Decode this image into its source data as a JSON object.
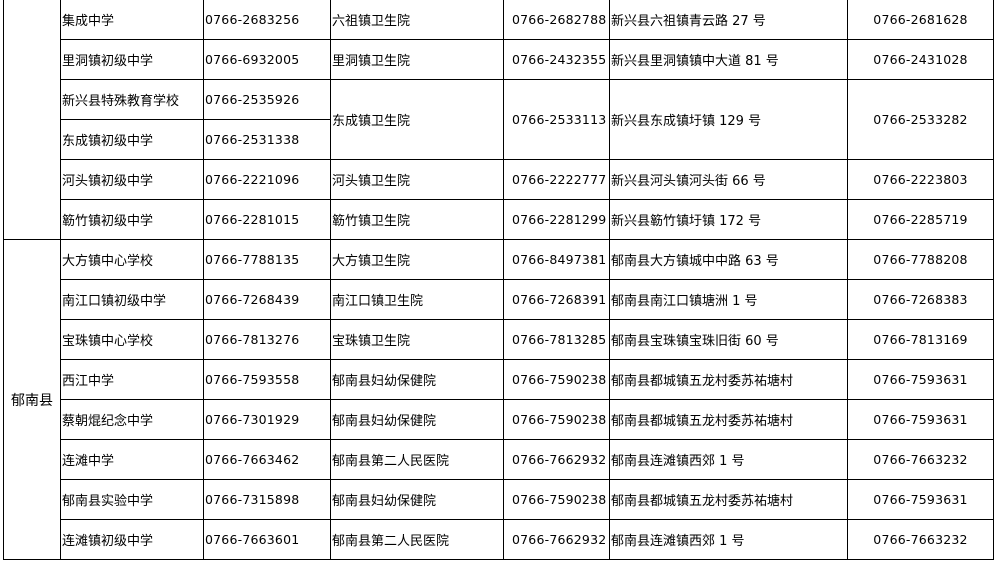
{
  "groups": [
    {
      "county": "",
      "rows": [
        {
          "school": "集成中学",
          "school_phone": "0766-2683256",
          "hospital": "六祖镇卫生院",
          "hospital_phone": "0766-2682788",
          "address": "新兴县六祖镇青云路 27 号",
          "contact_phone": "0766-2681628"
        },
        {
          "school": "里洞镇初级中学",
          "school_phone": "0766-6932005",
          "hospital": "里洞镇卫生院",
          "hospital_phone": "0766-2432355",
          "address": "新兴县里洞镇镇中大道 81 号",
          "contact_phone": "0766-2431028"
        },
        {
          "school": "新兴县特殊教育学校",
          "school_phone": "0766-2535926",
          "hospital": "东成镇卫生院",
          "hospital_phone": "0766-2533113",
          "address": "新兴县东成镇圩镇 129 号",
          "contact_phone": "0766-2533282"
        },
        {
          "school": "东成镇初级中学",
          "school_phone": "0766-2531338"
        },
        {
          "school": "河头镇初级中学",
          "school_phone": "0766-2221096",
          "hospital": "河头镇卫生院",
          "hospital_phone": "0766-2222777",
          "address": "新兴县河头镇河头街 66 号",
          "contact_phone": "0766-2223803"
        },
        {
          "school": "簕竹镇初级中学",
          "school_phone": "0766-2281015",
          "hospital": "簕竹镇卫生院",
          "hospital_phone": "0766-2281299",
          "address": "新兴县簕竹镇圩镇 172 号",
          "contact_phone": "0766-2285719"
        }
      ]
    },
    {
      "county": "郁南县",
      "rows": [
        {
          "school": "大方镇中心学校",
          "school_phone": "0766-7788135",
          "hospital": "大方镇卫生院",
          "hospital_phone": "0766-8497381",
          "address": "郁南县大方镇城中中路 63 号",
          "contact_phone": "0766-7788208"
        },
        {
          "school": "南江口镇初级中学",
          "school_phone": "0766-7268439",
          "hospital": "南江口镇卫生院",
          "hospital_phone": "0766-7268391",
          "address": "郁南县南江口镇塘洲 1 号",
          "contact_phone": "0766-7268383"
        },
        {
          "school": "宝珠镇中心学校",
          "school_phone": "0766-7813276",
          "hospital": "宝珠镇卫生院",
          "hospital_phone": "0766-7813285",
          "address": "郁南县宝珠镇宝珠旧街 60 号",
          "contact_phone": "0766-7813169"
        },
        {
          "school": "西江中学",
          "school_phone": "0766-7593558",
          "hospital": "郁南县妇幼保健院",
          "hospital_phone": "0766-7590238",
          "address": "郁南县都城镇五龙村委苏祐塘村",
          "contact_phone": "0766-7593631"
        },
        {
          "school": "蔡朝焜纪念中学",
          "school_phone": "0766-7301929",
          "hospital": "郁南县妇幼保健院",
          "hospital_phone": "0766-7590238",
          "address": "郁南县都城镇五龙村委苏祐塘村",
          "contact_phone": "0766-7593631"
        },
        {
          "school": "连滩中学",
          "school_phone": "0766-7663462",
          "hospital": "郁南县第二人民医院",
          "hospital_phone": "0766-7662932",
          "address": "郁南县连滩镇西郊 1 号",
          "contact_phone": "0766-7663232"
        },
        {
          "school": "郁南县实验中学",
          "school_phone": "0766-7315898",
          "hospital": "郁南县妇幼保健院",
          "hospital_phone": "0766-7590238",
          "address": "郁南县都城镇五龙村委苏祐塘村",
          "contact_phone": "0766-7593631"
        },
        {
          "school": "连滩镇初级中学",
          "school_phone": "0766-7663601",
          "hospital": "郁南县第二人民医院",
          "hospital_phone": "0766-7662932",
          "address": "郁南县连滩镇西郊 1 号",
          "contact_phone": "0766-7663232"
        }
      ]
    }
  ]
}
